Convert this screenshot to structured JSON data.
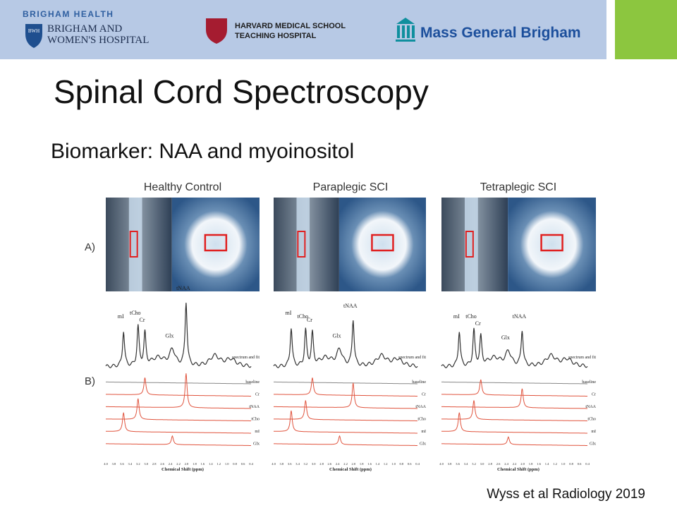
{
  "header": {
    "brigham_health": "BRIGHAM HEALTH",
    "bwh_badge": "BWH",
    "bwh_name": [
      "BRIGHAM AND",
      "WOMEN'S HOSPITAL"
    ],
    "harvard": [
      "HARVARD MEDICAL SCHOOL",
      "TEACHING HOSPITAL"
    ],
    "mgb": "Mass General Brigham"
  },
  "title": "Spinal Cord Spectroscopy",
  "subtitle": "Biomarker: NAA and myoinositol",
  "figure": {
    "row_labels": [
      "A)",
      "B)"
    ],
    "panels": [
      {
        "title": "Healthy Control"
      },
      {
        "title": "Paraplegic SCI"
      },
      {
        "title": "Tetraplegic SCI"
      }
    ],
    "peak_labels": [
      "mI",
      "tCho",
      "Cr",
      "Glx",
      "tNAA"
    ],
    "trace_labels": [
      "spectrum and fit",
      "baseline",
      "Cr",
      "tNAA",
      "tCho",
      "mI",
      "Glx"
    ],
    "x_axis_label": "Chemical Shift (ppm)",
    "x_ticks": [
      "4.0",
      "3.8",
      "3.6",
      "3.4",
      "3.2",
      "3.0",
      "2.8",
      "2.6",
      "2.4",
      "2.2",
      "2.0",
      "1.8",
      "1.6",
      "1.4",
      "1.2",
      "1.0",
      "0.8",
      "0.6",
      "0.4"
    ]
  },
  "citation": "Wyss et al Radiology 2019"
}
